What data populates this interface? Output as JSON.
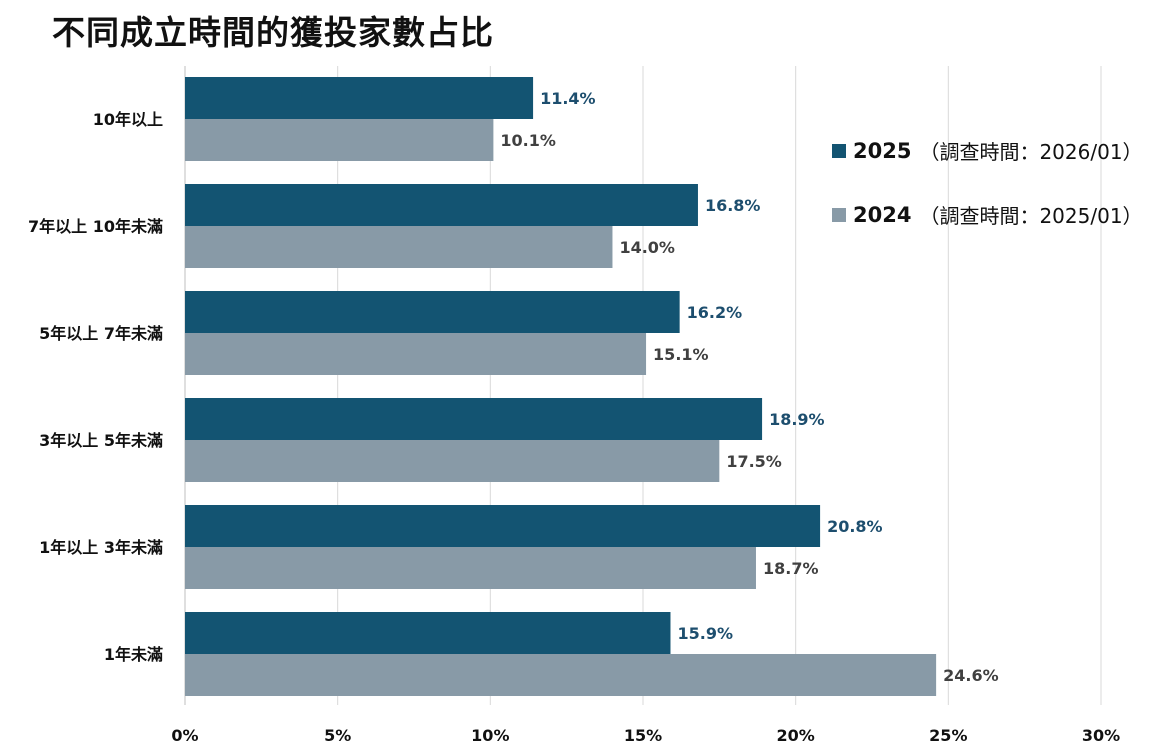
{
  "title": "不同成立時間的獲投家數占比",
  "legend": [
    {
      "year": "2025",
      "note": "（調查時間：2026/01）",
      "color": "#135472"
    },
    {
      "year": "2024",
      "note": "（調查時間：2025/01）",
      "color": "#889aa7"
    }
  ],
  "chart_data": {
    "type": "bar",
    "orientation": "horizontal",
    "title": "不同成立時間的獲投家數占比",
    "categories": [
      "10年以上",
      "7年以上 10年未滿",
      "5年以上 7年未滿",
      "3年以上 5年未滿",
      "1年以上 3年未滿",
      "1年未滿"
    ],
    "series": [
      {
        "name": "2025",
        "values": [
          11.4,
          16.8,
          16.2,
          18.9,
          20.8,
          15.9
        ],
        "labels": [
          "11.4%",
          "16.8%",
          "16.2%",
          "18.9%",
          "20.8%",
          "15.9%"
        ],
        "color": "#135472",
        "label_color": "#1d4e6e"
      },
      {
        "name": "2024",
        "values": [
          10.1,
          14.0,
          15.1,
          17.5,
          18.7,
          24.6
        ],
        "labels": [
          "10.1%",
          "14.0%",
          "15.1%",
          "17.5%",
          "18.7%",
          "24.6%"
        ],
        "color": "#889aa7",
        "label_color": "#404040"
      }
    ],
    "xlim": [
      0,
      30
    ],
    "xticks": [
      0,
      5,
      10,
      15,
      20,
      25,
      30
    ],
    "xtick_labels": [
      "0%",
      "5%",
      "10%",
      "15%",
      "20%",
      "25%",
      "30%"
    ],
    "grid": true,
    "legend_position": "right"
  }
}
